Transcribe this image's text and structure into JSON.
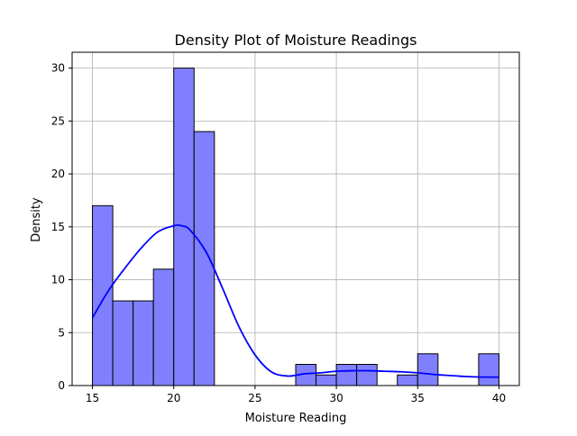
{
  "chart_data": {
    "type": "bar",
    "title": "Density Plot of Moisture Readings",
    "xlabel": "Moisture Reading",
    "ylabel": "Density",
    "xlim": [
      13.75,
      41.25
    ],
    "ylim": [
      0,
      31.5
    ],
    "xticks": [
      15,
      20,
      25,
      30,
      35,
      40
    ],
    "yticks": [
      0,
      5,
      10,
      15,
      20,
      25,
      30
    ],
    "grid": true,
    "bar_color": "#8080ff",
    "bar_edge_color": "#000000",
    "kde_color": "#0000ff",
    "bins": [
      {
        "start": 15.0,
        "end": 16.25,
        "value": 17
      },
      {
        "start": 16.25,
        "end": 17.5,
        "value": 8
      },
      {
        "start": 17.5,
        "end": 18.75,
        "value": 8
      },
      {
        "start": 18.75,
        "end": 20.0,
        "value": 11
      },
      {
        "start": 20.0,
        "end": 21.25,
        "value": 30
      },
      {
        "start": 21.25,
        "end": 22.5,
        "value": 24
      },
      {
        "start": 22.5,
        "end": 23.75,
        "value": 0
      },
      {
        "start": 23.75,
        "end": 25.0,
        "value": 0
      },
      {
        "start": 25.0,
        "end": 26.25,
        "value": 0
      },
      {
        "start": 26.25,
        "end": 27.5,
        "value": 0
      },
      {
        "start": 27.5,
        "end": 28.75,
        "value": 2
      },
      {
        "start": 28.75,
        "end": 30.0,
        "value": 1
      },
      {
        "start": 30.0,
        "end": 31.25,
        "value": 2
      },
      {
        "start": 31.25,
        "end": 32.5,
        "value": 2
      },
      {
        "start": 32.5,
        "end": 33.75,
        "value": 0
      },
      {
        "start": 33.75,
        "end": 35.0,
        "value": 1
      },
      {
        "start": 35.0,
        "end": 36.25,
        "value": 3
      },
      {
        "start": 36.25,
        "end": 37.5,
        "value": 0
      },
      {
        "start": 37.5,
        "end": 38.75,
        "value": 0
      },
      {
        "start": 38.75,
        "end": 40.0,
        "value": 3
      }
    ],
    "kde": {
      "x": [
        15,
        16,
        17,
        18,
        19,
        20,
        20.5,
        21,
        22,
        23,
        24,
        25,
        26,
        27,
        28,
        29,
        30,
        31,
        32,
        33,
        34,
        35,
        36,
        37,
        38,
        39,
        40
      ],
      "y": [
        6.4,
        9.0,
        11.1,
        13.0,
        14.5,
        15.1,
        15.1,
        14.7,
        12.6,
        9.2,
        5.6,
        2.9,
        1.3,
        0.9,
        1.1,
        1.2,
        1.35,
        1.4,
        1.4,
        1.35,
        1.3,
        1.2,
        1.05,
        0.95,
        0.85,
        0.8,
        0.8
      ]
    }
  }
}
